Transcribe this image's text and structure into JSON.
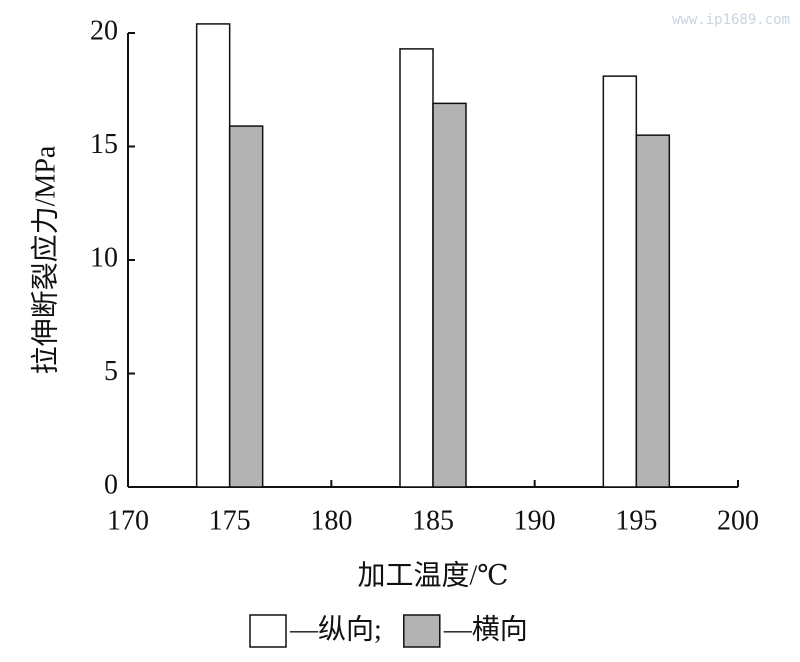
{
  "watermark": "www.ip1689.com",
  "chart_data": {
    "type": "bar",
    "xlabel": "加工温度/℃",
    "ylabel": "拉伸断裂应力/MPa",
    "x": [
      175,
      185,
      195
    ],
    "series": [
      {
        "name": "—纵向;",
        "color": "#ffffff",
        "values": [
          20.4,
          19.3,
          18.1
        ]
      },
      {
        "name": "—横向",
        "color": "#b3b3b3",
        "values": [
          15.9,
          16.9,
          15.5
        ]
      }
    ],
    "xlim": [
      170,
      200
    ],
    "xticks": [
      170,
      175,
      180,
      185,
      190,
      195,
      200
    ],
    "ylim": [
      0,
      20
    ],
    "yticks": [
      0,
      5,
      10,
      15,
      20
    ],
    "grid": false,
    "legend": "bottom"
  }
}
